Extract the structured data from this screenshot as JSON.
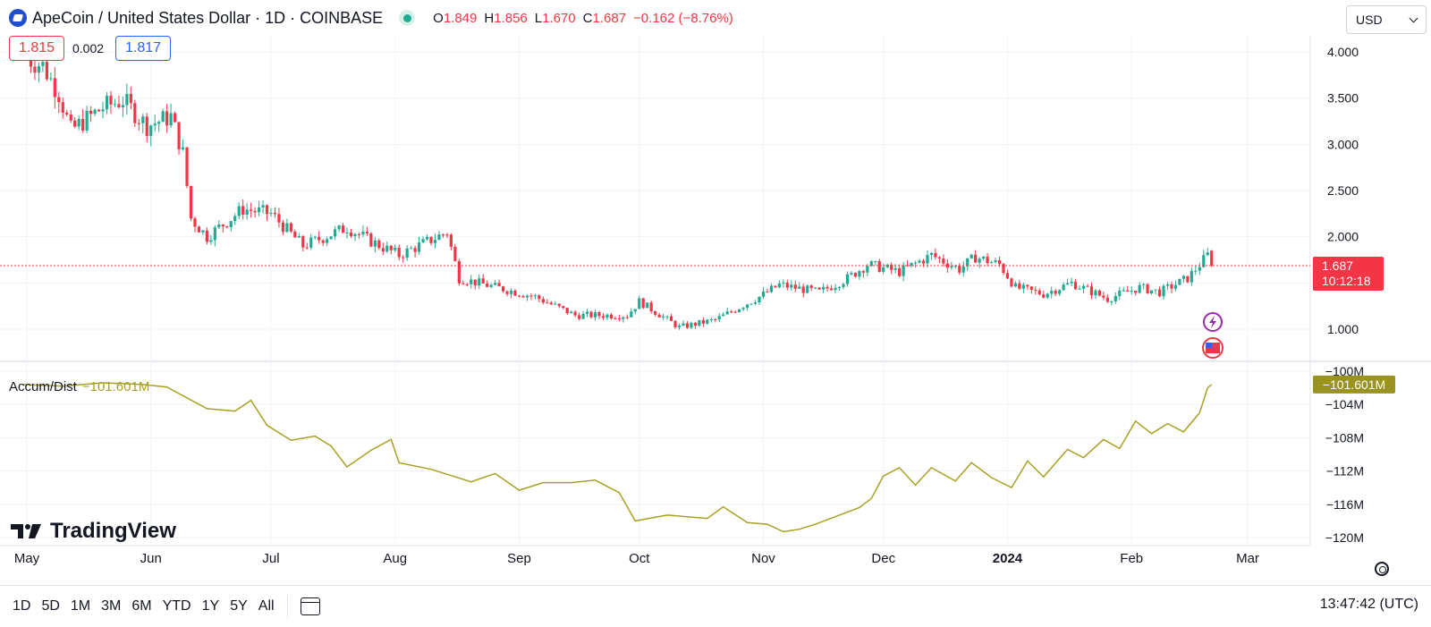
{
  "header": {
    "symbol": "ApeCoin / United States Dollar · 1D · COINBASE",
    "open_label": "O",
    "open": "1.849",
    "high_label": "H",
    "high": "1.856",
    "low_label": "L",
    "low": "1.670",
    "close_label": "C",
    "close": "1.687",
    "change": "−0.162 (−8.76%)"
  },
  "bid": "1.815",
  "spread": "0.002",
  "ask": "1.817",
  "currency": "USD",
  "current_price_label": "1.687",
  "countdown": "10:12:18",
  "indicator": {
    "name": "Accum/Dist",
    "value": "−101.601M",
    "axis_value": "−101.601M"
  },
  "logo_text": "TradingView",
  "toolbar": {
    "ranges": [
      "1D",
      "5D",
      "1M",
      "3M",
      "6M",
      "YTD",
      "1Y",
      "5Y",
      "All"
    ]
  },
  "clock": "13:47:42 (UTC)",
  "colors": {
    "up": "#22ab94",
    "down": "#f23645",
    "ad_line": "#a7a124",
    "accent": "#2962ff"
  },
  "chart_data": [
    {
      "type": "candlestick",
      "series_name": "ApeCoin / United States Dollar",
      "x_tick_labels": [
        "May",
        "Jun",
        "Jul",
        "Aug",
        "Sep",
        "Oct",
        "Nov",
        "Dec",
        "2024",
        "Feb",
        "Mar"
      ],
      "y_tick_labels": [
        "4.000",
        "3.500",
        "3.000",
        "2.500",
        "2.000",
        "1.000"
      ],
      "ylim": [
        0.65,
        4.3
      ],
      "grid": true,
      "key_points": [
        {
          "date": "2023-04-30",
          "price": 3.95
        },
        {
          "date": "2023-05-05",
          "price": 3.85
        },
        {
          "date": "2023-05-09",
          "price": 3.55
        },
        {
          "date": "2023-05-12",
          "price": 3.15
        },
        {
          "date": "2023-05-20",
          "price": 3.4
        },
        {
          "date": "2023-05-25",
          "price": 3.48
        },
        {
          "date": "2023-05-31",
          "price": 3.2
        },
        {
          "date": "2023-06-06",
          "price": 3.3
        },
        {
          "date": "2023-06-09",
          "price": 2.9
        },
        {
          "date": "2023-06-11",
          "price": 2.2
        },
        {
          "date": "2023-06-15",
          "price": 2.0
        },
        {
          "date": "2023-06-24",
          "price": 2.3
        },
        {
          "date": "2023-07-01",
          "price": 2.25
        },
        {
          "date": "2023-07-09",
          "price": 1.9
        },
        {
          "date": "2023-07-20",
          "price": 2.1
        },
        {
          "date": "2023-07-26",
          "price": 1.95
        },
        {
          "date": "2023-08-02",
          "price": 1.8
        },
        {
          "date": "2023-08-14",
          "price": 2.05
        },
        {
          "date": "2023-08-17",
          "price": 1.55
        },
        {
          "date": "2023-09-05",
          "price": 1.35
        },
        {
          "date": "2023-09-15",
          "price": 1.15
        },
        {
          "date": "2023-09-28",
          "price": 1.15
        },
        {
          "date": "2023-10-01",
          "price": 1.3
        },
        {
          "date": "2023-10-11",
          "price": 1.02
        },
        {
          "date": "2023-10-20",
          "price": 1.1
        },
        {
          "date": "2023-10-31",
          "price": 1.35
        },
        {
          "date": "2023-11-05",
          "price": 1.48
        },
        {
          "date": "2023-11-15",
          "price": 1.4
        },
        {
          "date": "2023-11-22",
          "price": 1.55
        },
        {
          "date": "2023-11-27",
          "price": 1.7
        },
        {
          "date": "2023-12-05",
          "price": 1.62
        },
        {
          "date": "2023-12-13",
          "price": 1.8
        },
        {
          "date": "2023-12-20",
          "price": 1.65
        },
        {
          "date": "2023-12-24",
          "price": 1.78
        },
        {
          "date": "2023-12-30",
          "price": 1.7
        },
        {
          "date": "2024-01-03",
          "price": 1.45
        },
        {
          "date": "2024-01-10",
          "price": 1.38
        },
        {
          "date": "2024-01-17",
          "price": 1.5
        },
        {
          "date": "2024-01-26",
          "price": 1.33
        },
        {
          "date": "2024-02-03",
          "price": 1.45
        },
        {
          "date": "2024-02-08",
          "price": 1.4
        },
        {
          "date": "2024-02-15",
          "price": 1.55
        },
        {
          "date": "2024-02-20",
          "price": 1.8
        },
        {
          "date": "2024-02-21",
          "price": 1.687
        }
      ],
      "last_candle": {
        "open": 1.849,
        "high": 1.856,
        "low": 1.67,
        "close": 1.687
      }
    },
    {
      "type": "line",
      "series_name": "Accum/Dist",
      "y_tick_labels": [
        "−100M",
        "−104M",
        "−108M",
        "−112M",
        "−116M",
        "−120M"
      ],
      "ylim": [
        -120.5,
        -99.5
      ],
      "grid": true,
      "points": [
        {
          "date": "2023-04-30",
          "value": -101.6
        },
        {
          "date": "2023-05-10",
          "value": -101.8
        },
        {
          "date": "2023-05-20",
          "value": -101.4
        },
        {
          "date": "2023-05-30",
          "value": -101.6
        },
        {
          "date": "2023-06-05",
          "value": -101.9
        },
        {
          "date": "2023-06-15",
          "value": -104.5
        },
        {
          "date": "2023-06-22",
          "value": -104.8
        },
        {
          "date": "2023-06-26",
          "value": -103.5
        },
        {
          "date": "2023-06-30",
          "value": -106.5
        },
        {
          "date": "2023-07-06",
          "value": -108.3
        },
        {
          "date": "2023-07-12",
          "value": -107.8
        },
        {
          "date": "2023-07-16",
          "value": -109.0
        },
        {
          "date": "2023-07-20",
          "value": -111.5
        },
        {
          "date": "2023-07-26",
          "value": -109.5
        },
        {
          "date": "2023-07-31",
          "value": -108.2
        },
        {
          "date": "2023-08-02",
          "value": -111.0
        },
        {
          "date": "2023-08-10",
          "value": -111.8
        },
        {
          "date": "2023-08-20",
          "value": -113.3
        },
        {
          "date": "2023-08-26",
          "value": -112.3
        },
        {
          "date": "2023-09-01",
          "value": -114.3
        },
        {
          "date": "2023-09-07",
          "value": -113.4
        },
        {
          "date": "2023-09-14",
          "value": -113.4
        },
        {
          "date": "2023-09-20",
          "value": -113.1
        },
        {
          "date": "2023-09-26",
          "value": -114.6
        },
        {
          "date": "2023-09-30",
          "value": -118.0
        },
        {
          "date": "2023-10-08",
          "value": -117.3
        },
        {
          "date": "2023-10-18",
          "value": -117.7
        },
        {
          "date": "2023-10-22",
          "value": -116.3
        },
        {
          "date": "2023-10-28",
          "value": -118.2
        },
        {
          "date": "2023-11-02",
          "value": -118.4
        },
        {
          "date": "2023-11-06",
          "value": -119.3
        },
        {
          "date": "2023-11-10",
          "value": -119.0
        },
        {
          "date": "2023-11-14",
          "value": -118.4
        },
        {
          "date": "2023-11-20",
          "value": -117.3
        },
        {
          "date": "2023-11-25",
          "value": -116.4
        },
        {
          "date": "2023-11-28",
          "value": -115.3
        },
        {
          "date": "2023-12-01",
          "value": -112.6
        },
        {
          "date": "2023-12-05",
          "value": -111.6
        },
        {
          "date": "2023-12-09",
          "value": -113.7
        },
        {
          "date": "2023-12-13",
          "value": -111.6
        },
        {
          "date": "2023-12-19",
          "value": -113.2
        },
        {
          "date": "2023-12-23",
          "value": -111.0
        },
        {
          "date": "2023-12-28",
          "value": -112.8
        },
        {
          "date": "2024-01-02",
          "value": -114.0
        },
        {
          "date": "2024-01-06",
          "value": -110.8
        },
        {
          "date": "2024-01-10",
          "value": -112.7
        },
        {
          "date": "2024-01-16",
          "value": -109.4
        },
        {
          "date": "2024-01-20",
          "value": -110.4
        },
        {
          "date": "2024-01-25",
          "value": -108.2
        },
        {
          "date": "2024-01-29",
          "value": -109.3
        },
        {
          "date": "2024-02-02",
          "value": -106.0
        },
        {
          "date": "2024-02-06",
          "value": -107.5
        },
        {
          "date": "2024-02-10",
          "value": -106.3
        },
        {
          "date": "2024-02-14",
          "value": -107.3
        },
        {
          "date": "2024-02-18",
          "value": -105.0
        },
        {
          "date": "2024-02-20",
          "value": -102.0
        },
        {
          "date": "2024-02-21",
          "value": -101.601
        }
      ]
    }
  ]
}
